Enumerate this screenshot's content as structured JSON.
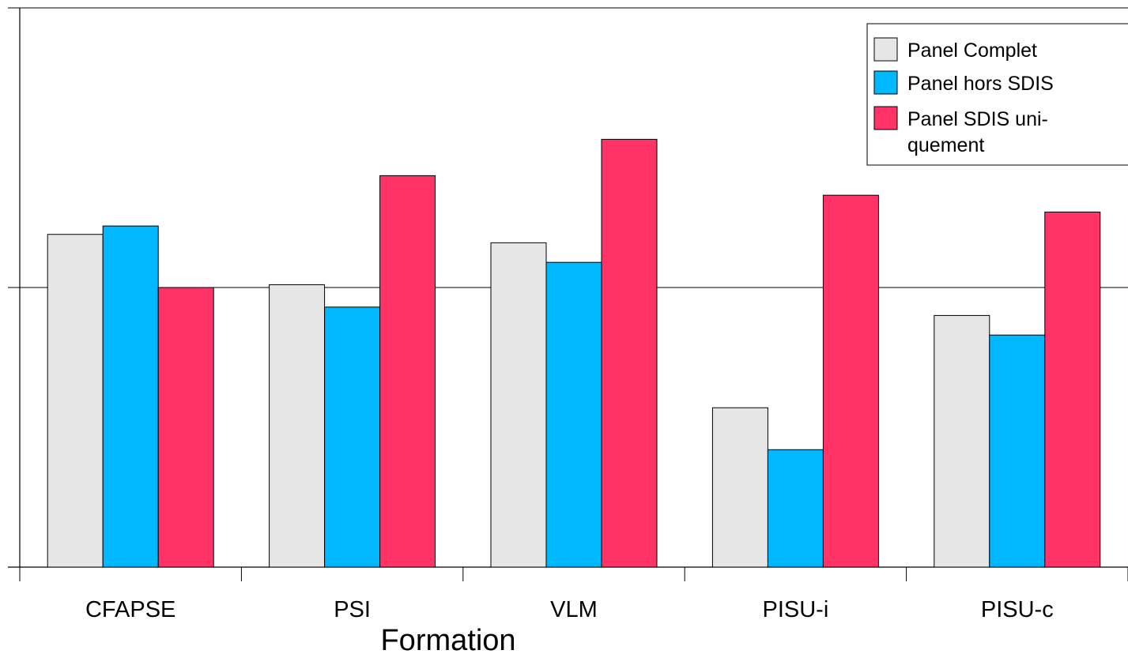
{
  "chart_data": {
    "type": "bar",
    "title": "",
    "xlabel": "Formation",
    "ylabel": "",
    "categories": [
      "CFAPSE",
      "PSI",
      "VLM",
      "PISU-i",
      "PISU-c"
    ],
    "series": [
      {
        "name": "Panel Complet",
        "color": "#e6e6e6",
        "values": [
          1.19,
          1.01,
          1.16,
          0.57,
          0.9
        ]
      },
      {
        "name": "Panel hors SDIS",
        "color": "#00b8ff",
        "values": [
          1.22,
          0.93,
          1.09,
          0.42,
          0.83
        ]
      },
      {
        "name": "Panel SDIS uni-quement",
        "color": "#ff3366",
        "values": [
          1.0,
          1.4,
          1.53,
          1.33,
          1.27
        ]
      }
    ],
    "ylim": [
      0,
      2
    ],
    "yticks": [
      0,
      1,
      2
    ],
    "grid": true,
    "legend_position": "top-right"
  },
  "legend": {
    "items": [
      {
        "label_lines": [
          "Panel Complet"
        ]
      },
      {
        "label_lines": [
          "Panel hors SDIS"
        ]
      },
      {
        "label_lines": [
          "Panel SDIS uni-",
          "quement"
        ]
      }
    ]
  }
}
